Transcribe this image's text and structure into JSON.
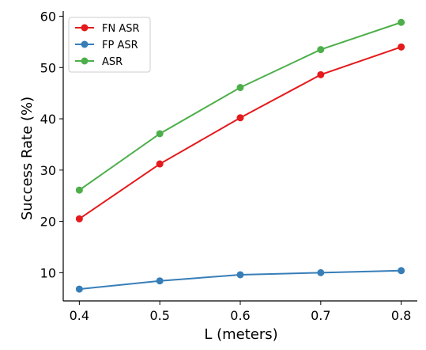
{
  "chart_data": {
    "type": "line",
    "x": [
      0.4,
      0.5,
      0.6,
      0.7,
      0.8
    ],
    "series": [
      {
        "name": "FN ASR",
        "color": "#e41a1c",
        "values": [
          20.5,
          31.2,
          40.2,
          48.6,
          54.0
        ]
      },
      {
        "name": "FP ASR",
        "color": "#377eb8",
        "values": [
          6.8,
          8.4,
          9.6,
          10.0,
          10.4
        ]
      },
      {
        "name": "ASR",
        "color": "#4daf4a",
        "values": [
          26.1,
          37.1,
          46.1,
          53.5,
          58.8
        ]
      }
    ],
    "xlabel": "L (meters)",
    "ylabel": "Success Rate (%)",
    "xlim": [
      0.38,
      0.82
    ],
    "ylim": [
      4.5,
      61
    ],
    "xticks": [
      0.4,
      0.5,
      0.6,
      0.7,
      0.8
    ],
    "xtick_labels": [
      "0.4",
      "0.5",
      "0.6",
      "0.7",
      "0.8"
    ],
    "yticks": [
      10,
      20,
      30,
      40,
      50,
      60
    ],
    "ytick_labels": [
      "10",
      "20",
      "30",
      "40",
      "50",
      "60"
    ],
    "grid": false,
    "legend_position": "top-left"
  }
}
